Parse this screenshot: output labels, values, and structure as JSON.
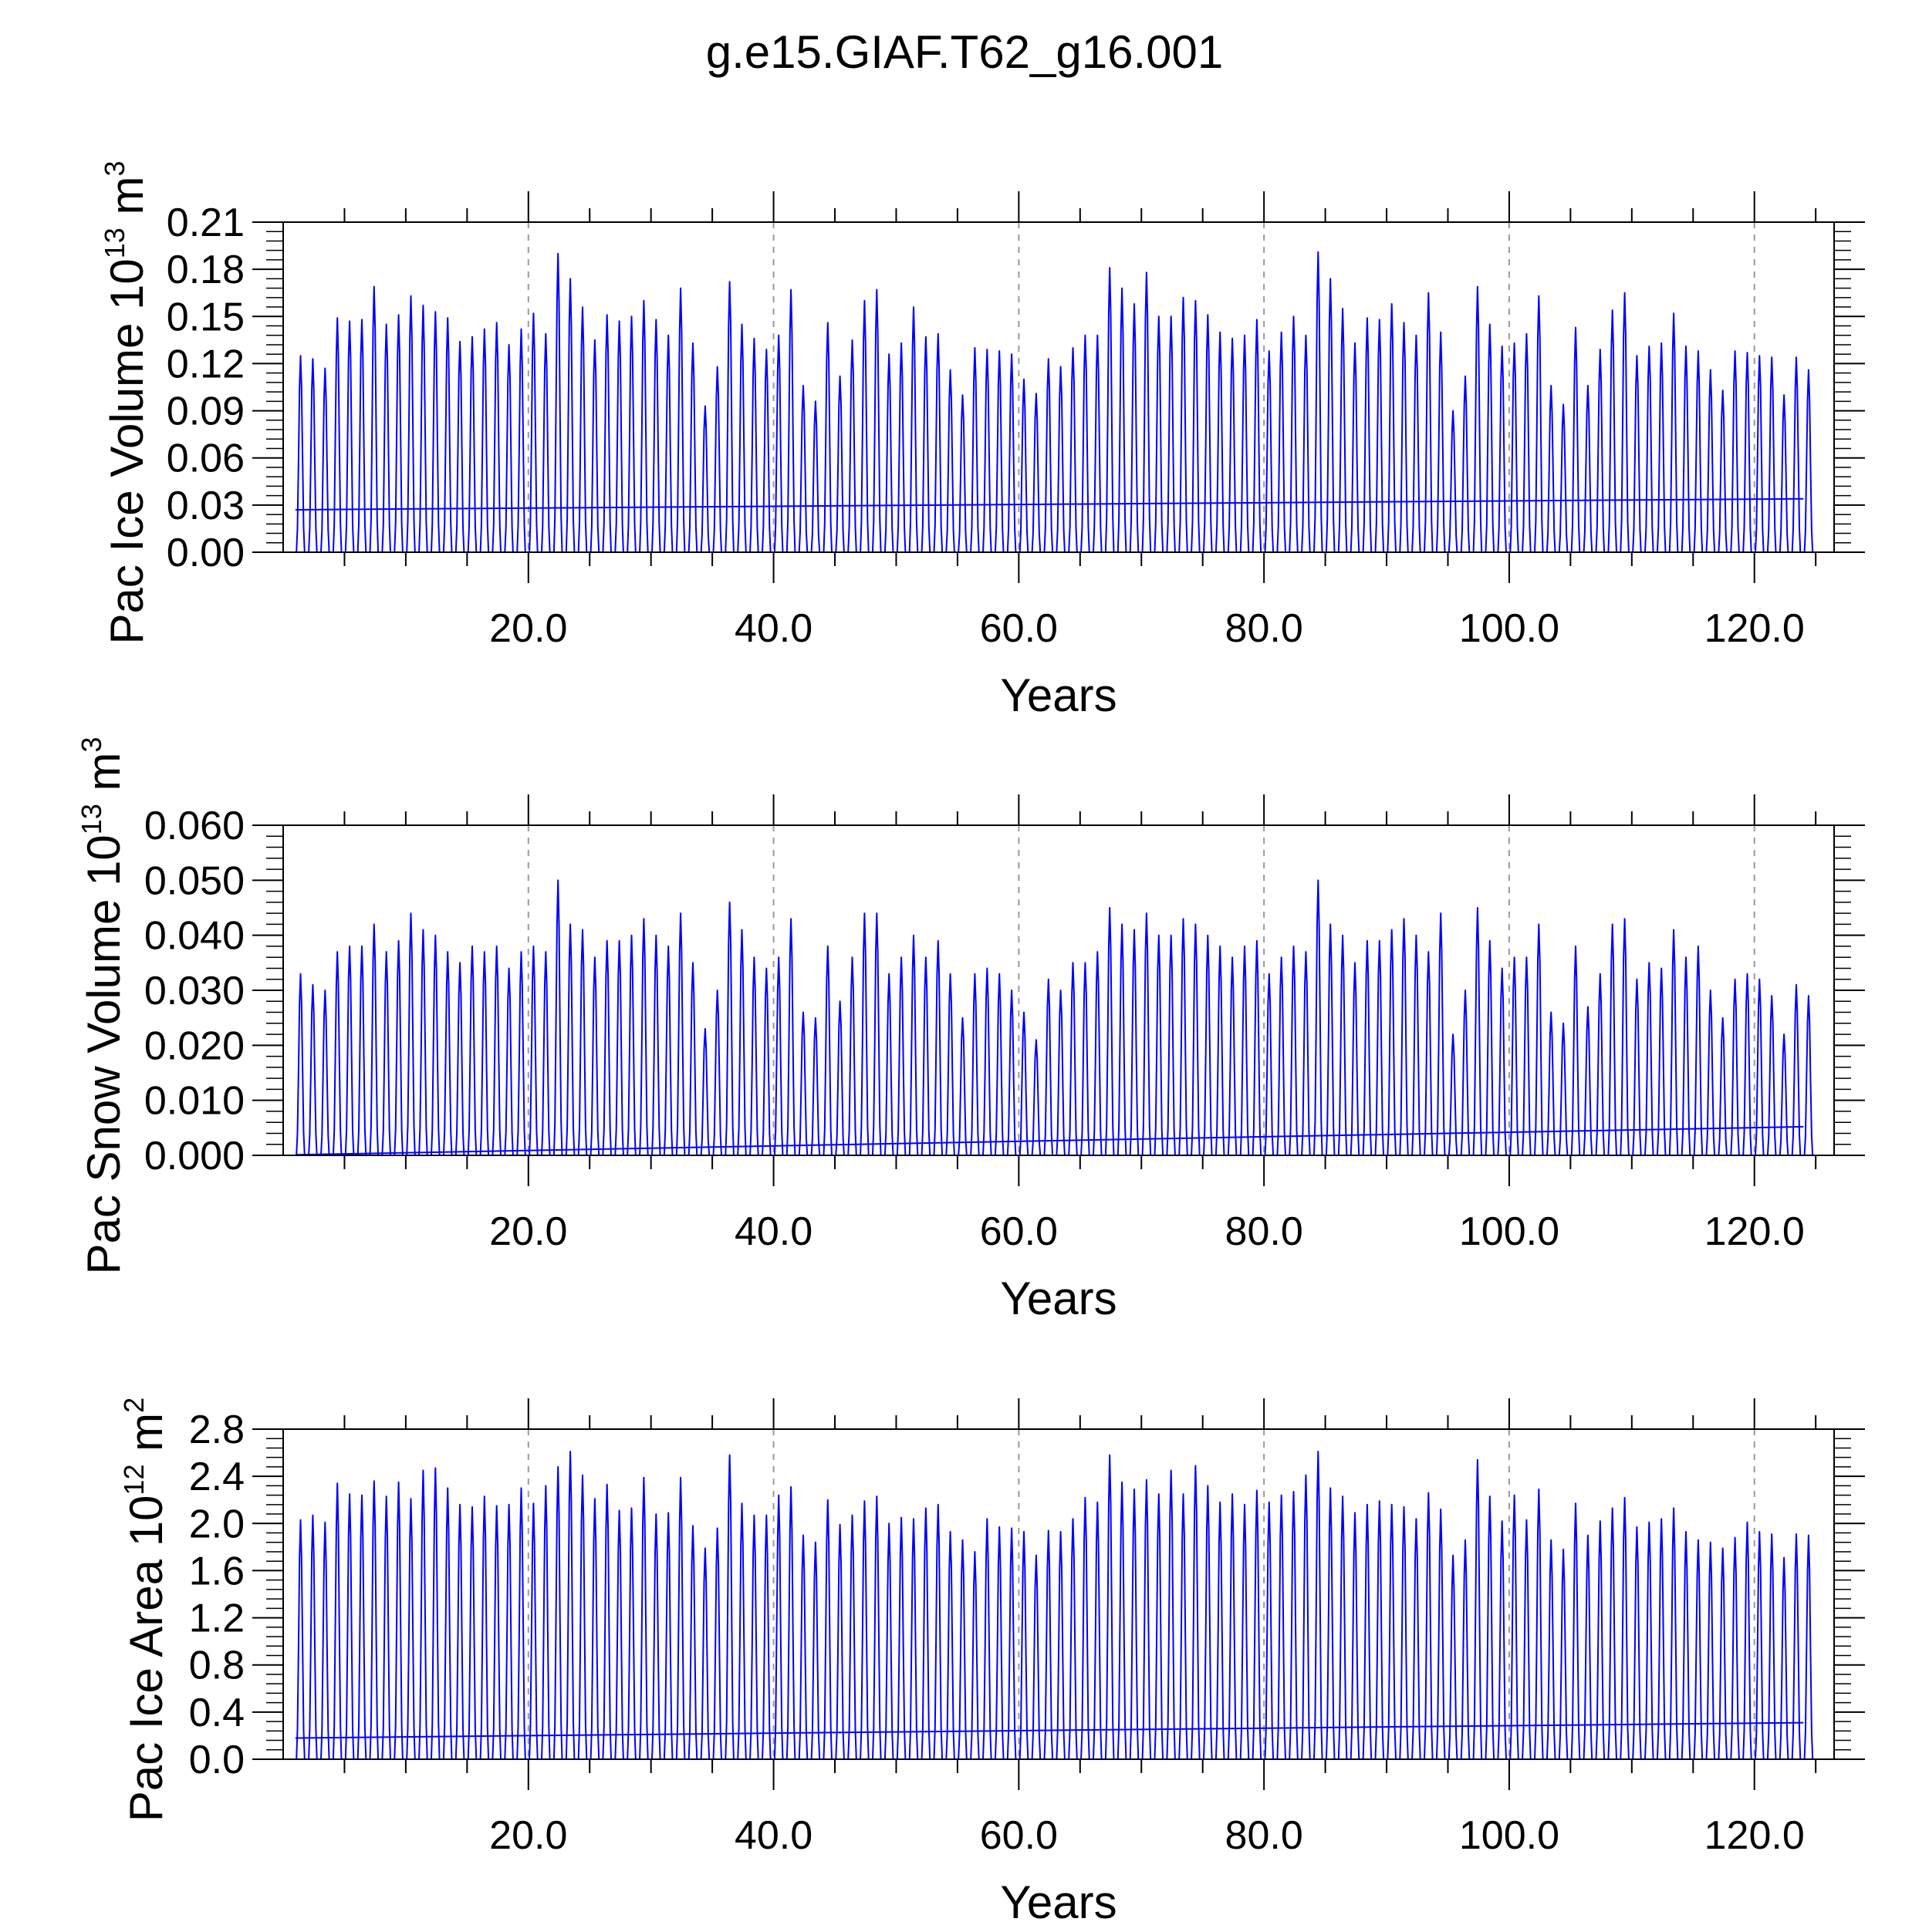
{
  "title": "g.e15.GIAF.T62_g16.001",
  "colors": {
    "series": "#0000ff",
    "axis": "#000000",
    "grid": "#9a9a9a"
  },
  "chart_data": [
    {
      "type": "line",
      "panel": "ice-volume",
      "ylabel": {
        "main": "Pac Ice Volume 10",
        "exp": "13",
        "unit": " m",
        "unit_exp": "3"
      },
      "xlabel": "Years",
      "xlim": [
        0,
        126.5
      ],
      "ylim": [
        0,
        0.21
      ],
      "xticks": [
        20,
        40,
        60,
        80,
        100,
        120
      ],
      "xtick_labels": [
        "20.0",
        "40.0",
        "60.0",
        "80.0",
        "100.0",
        "120.0"
      ],
      "yticks": [
        0,
        0.03,
        0.06,
        0.09,
        0.12,
        0.15,
        0.18,
        0.21
      ],
      "ytick_labels": [
        "0.00",
        "0.03",
        "0.06",
        "0.09",
        "0.12",
        "0.15",
        "0.18",
        "0.21"
      ],
      "grid": "vertical dashed at major x ticks",
      "series": [
        {
          "kind": "monthly seasonal cycle",
          "years": [
            1,
            124
          ],
          "minimum": 0,
          "annual_maxima": [
            0.125,
            0.123,
            0.117,
            0.149,
            0.147,
            0.148,
            0.169,
            0.145,
            0.151,
            0.163,
            0.157,
            0.153,
            0.149,
            0.134,
            0.137,
            0.142,
            0.146,
            0.132,
            0.142,
            0.152,
            0.139,
            0.19,
            0.174,
            0.156,
            0.135,
            0.151,
            0.147,
            0.15,
            0.16,
            0.148,
            0.138,
            0.168,
            0.133,
            0.093,
            0.118,
            0.172,
            0.145,
            0.136,
            0.129,
            0.138,
            0.167,
            0.106,
            0.096,
            0.146,
            0.112,
            0.135,
            0.16,
            0.167,
            0.126,
            0.133,
            0.156,
            0.137,
            0.139,
            0.116,
            0.1,
            0.13,
            0.129,
            0.128,
            0.126,
            0.11,
            0.101,
            0.123,
            0.118,
            0.13,
            0.138,
            0.138,
            0.181,
            0.168,
            0.158,
            0.178,
            0.15,
            0.15,
            0.162,
            0.16,
            0.151,
            0.14,
            0.136,
            0.138,
            0.148,
            0.128,
            0.14,
            0.15,
            0.138,
            0.191,
            0.174,
            0.155,
            0.133,
            0.149,
            0.148,
            0.158,
            0.146,
            0.138,
            0.165,
            0.14,
            0.09,
            0.112,
            0.169,
            0.145,
            0.131,
            0.133,
            0.139,
            0.163,
            0.106,
            0.094,
            0.143,
            0.106,
            0.129,
            0.154,
            0.165,
            0.125,
            0.131,
            0.133,
            0.152,
            0.131,
            0.128,
            0.116,
            0.103,
            0.128,
            0.127,
            0.125,
            0.124,
            0.1,
            0.124,
            0.116
          ]
        },
        {
          "kind": "linear trend",
          "x": [
            1,
            124
          ],
          "y": [
            0.027,
            0.034
          ]
        }
      ]
    },
    {
      "type": "line",
      "panel": "snow-volume",
      "ylabel": {
        "main": "Pac Snow Volume 10",
        "exp": "13",
        "unit": " m",
        "unit_exp": "3"
      },
      "xlabel": "Years",
      "xlim": [
        0,
        126.5
      ],
      "ylim": [
        0,
        0.06
      ],
      "xticks": [
        20,
        40,
        60,
        80,
        100,
        120
      ],
      "xtick_labels": [
        "20.0",
        "40.0",
        "60.0",
        "80.0",
        "100.0",
        "120.0"
      ],
      "yticks": [
        0,
        0.01,
        0.02,
        0.03,
        0.04,
        0.05,
        0.06
      ],
      "ytick_labels": [
        "0.000",
        "0.010",
        "0.020",
        "0.030",
        "0.040",
        "0.050",
        "0.060"
      ],
      "grid": "vertical dashed at major x ticks",
      "series": [
        {
          "kind": "monthly seasonal cycle",
          "years": [
            1,
            124
          ],
          "minimum": 0,
          "annual_maxima": [
            0.033,
            0.031,
            0.03,
            0.037,
            0.038,
            0.038,
            0.042,
            0.037,
            0.039,
            0.044,
            0.041,
            0.04,
            0.037,
            0.035,
            0.038,
            0.037,
            0.038,
            0.034,
            0.037,
            0.038,
            0.037,
            0.05,
            0.042,
            0.041,
            0.036,
            0.039,
            0.039,
            0.04,
            0.043,
            0.04,
            0.038,
            0.044,
            0.035,
            0.023,
            0.03,
            0.046,
            0.041,
            0.036,
            0.034,
            0.036,
            0.043,
            0.026,
            0.025,
            0.038,
            0.028,
            0.036,
            0.044,
            0.044,
            0.033,
            0.036,
            0.04,
            0.036,
            0.039,
            0.033,
            0.025,
            0.033,
            0.034,
            0.033,
            0.03,
            0.026,
            0.021,
            0.032,
            0.03,
            0.035,
            0.035,
            0.037,
            0.045,
            0.042,
            0.041,
            0.044,
            0.04,
            0.04,
            0.043,
            0.042,
            0.04,
            0.038,
            0.036,
            0.038,
            0.039,
            0.033,
            0.036,
            0.038,
            0.037,
            0.05,
            0.042,
            0.04,
            0.035,
            0.039,
            0.039,
            0.041,
            0.043,
            0.04,
            0.037,
            0.044,
            0.022,
            0.03,
            0.045,
            0.039,
            0.034,
            0.036,
            0.036,
            0.042,
            0.026,
            0.024,
            0.038,
            0.027,
            0.033,
            0.042,
            0.043,
            0.032,
            0.035,
            0.034,
            0.041,
            0.036,
            0.038,
            0.03,
            0.025,
            0.032,
            0.033,
            0.032,
            0.029,
            0.022,
            0.031,
            0.029
          ]
        },
        {
          "kind": "linear trend",
          "x": [
            1,
            124
          ],
          "y": [
            0.0001,
            0.0052
          ]
        }
      ]
    },
    {
      "type": "line",
      "panel": "ice-area",
      "ylabel": {
        "main": "Pac Ice Area 10",
        "exp": "12",
        "unit": " m",
        "unit_exp": "2"
      },
      "xlabel": "Years",
      "xlim": [
        0,
        126.5
      ],
      "ylim": [
        0,
        2.8
      ],
      "xticks": [
        20,
        40,
        60,
        80,
        100,
        120
      ],
      "xtick_labels": [
        "20.0",
        "40.0",
        "60.0",
        "80.0",
        "100.0",
        "120.0"
      ],
      "yticks": [
        0,
        0.4,
        0.8,
        1.2,
        1.6,
        2.0,
        2.4,
        2.8
      ],
      "ytick_labels": [
        "0.0",
        "0.4",
        "0.8",
        "1.2",
        "1.6",
        "2.0",
        "2.4",
        "2.8"
      ],
      "grid": "vertical dashed at major x ticks",
      "series": [
        {
          "kind": "monthly seasonal cycle",
          "years": [
            1,
            124
          ],
          "minimum": 0,
          "annual_maxima": [
            2.03,
            2.07,
            2.01,
            2.34,
            2.25,
            2.24,
            2.36,
            2.23,
            2.35,
            2.21,
            2.45,
            2.47,
            2.3,
            2.16,
            2.14,
            2.23,
            2.15,
            2.16,
            2.3,
            2.17,
            2.32,
            2.48,
            2.61,
            2.41,
            2.21,
            2.33,
            2.11,
            2.13,
            2.39,
            2.08,
            2.09,
            2.39,
            1.98,
            1.79,
            1.96,
            2.58,
            2.17,
            2.07,
            2.07,
            2.24,
            2.31,
            1.9,
            1.84,
            2.2,
            1.99,
            2.07,
            2.19,
            2.23,
            2.0,
            2.05,
            2.04,
            2.13,
            2.16,
            1.93,
            1.86,
            1.76,
            2.04,
            1.97,
            1.96,
            1.93,
            1.73,
            1.94,
            1.93,
            2.04,
            2.22,
            2.18,
            2.58,
            2.35,
            2.29,
            2.37,
            2.25,
            2.45,
            2.25,
            2.49,
            2.32,
            2.18,
            2.25,
            2.16,
            2.28,
            2.18,
            2.24,
            2.27,
            2.41,
            2.61,
            2.3,
            2.23,
            2.09,
            2.16,
            2.19,
            2.16,
            2.14,
            2.04,
            2.26,
            2.12,
            1.73,
            1.86,
            2.54,
            2.23,
            2.02,
            2.24,
            2.03,
            2.29,
            1.86,
            1.78,
            2.17,
            1.9,
            2.02,
            2.13,
            2.22,
            1.97,
            2.01,
            2.04,
            2.13,
            1.93,
            1.86,
            1.84,
            1.79,
            1.88,
            2.01,
            1.93,
            1.91,
            1.71,
            1.91,
            1.9
          ]
        },
        {
          "kind": "linear trend",
          "x": [
            1,
            124
          ],
          "y": [
            0.18,
            0.31
          ]
        }
      ]
    }
  ]
}
